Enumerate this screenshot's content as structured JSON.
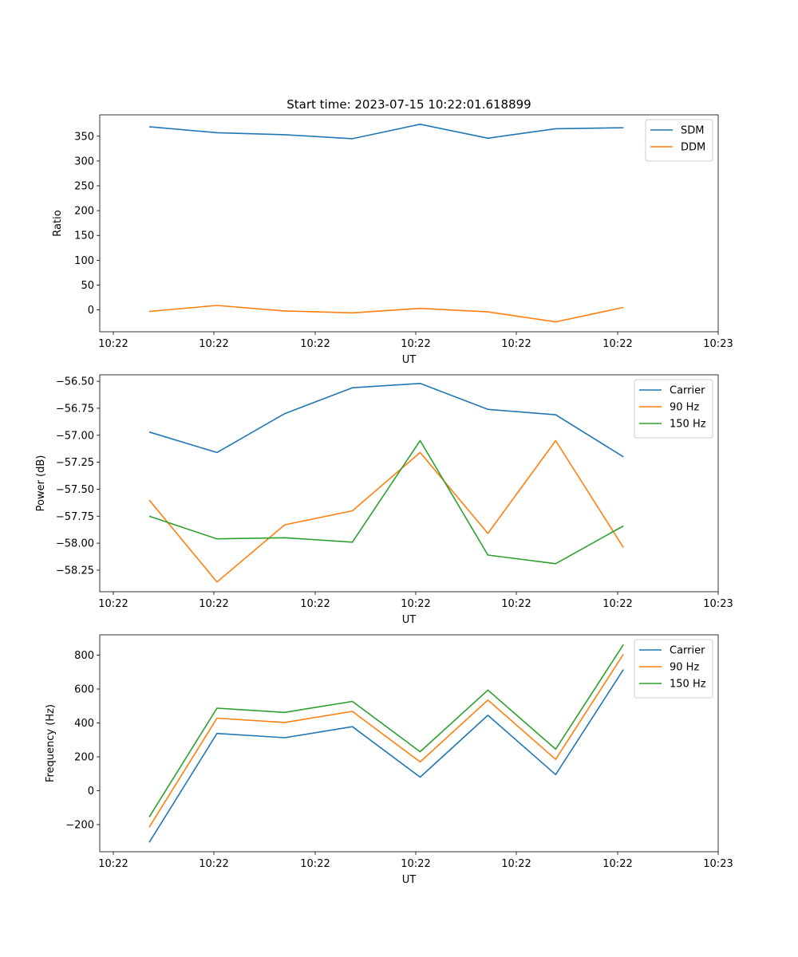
{
  "figure": {
    "title": "Start time: 2023-07-15 10:22:01.618899"
  },
  "chart_data": [
    {
      "type": "line",
      "title": "Start time: 2023-07-15 10:22:01.618899",
      "xlabel": "UT",
      "ylabel": "Ratio",
      "x_tick_labels": [
        "10:22",
        "10:22",
        "10:22",
        "10:22",
        "10:22",
        "10:22",
        "10:23"
      ],
      "x": [
        1,
        2,
        3,
        4,
        5,
        6,
        7,
        8
      ],
      "xlim": [
        0.27,
        9.4
      ],
      "ylim": [
        -44,
        393
      ],
      "y_ticks": [
        0,
        50,
        100,
        150,
        200,
        250,
        300,
        350
      ],
      "legend_position": "top-right",
      "series": [
        {
          "name": "SDM",
          "color": "#1f77b4",
          "values": [
            369,
            357,
            353,
            345,
            374,
            346,
            365,
            367
          ]
        },
        {
          "name": "DDM",
          "color": "#ff7f0e",
          "values": [
            -3,
            9,
            -2,
            -6,
            3,
            -4,
            -24,
            5
          ]
        }
      ]
    },
    {
      "type": "line",
      "xlabel": "UT",
      "ylabel": "Power (dB)",
      "x_tick_labels": [
        "10:22",
        "10:22",
        "10:22",
        "10:22",
        "10:22",
        "10:22",
        "10:23"
      ],
      "x": [
        1,
        2,
        3,
        4,
        5,
        6,
        7,
        8
      ],
      "xlim": [
        0.27,
        9.4
      ],
      "ylim": [
        -58.45,
        -56.44
      ],
      "y_ticks": [
        -58.25,
        -58.0,
        -57.75,
        -57.5,
        -57.25,
        -57.0,
        -56.75,
        -56.5
      ],
      "y_tick_labels": [
        "−58.25",
        "−58.00",
        "−57.75",
        "−57.50",
        "−57.25",
        "−57.00",
        "−56.75",
        "−56.50"
      ],
      "legend_position": "top-right",
      "series": [
        {
          "name": "Carrier",
          "color": "#1f77b4",
          "values": [
            -56.97,
            -57.16,
            -56.8,
            -56.56,
            -56.52,
            -56.76,
            -56.81,
            -57.2
          ]
        },
        {
          "name": "90 Hz",
          "color": "#ff7f0e",
          "values": [
            -57.6,
            -58.36,
            -57.83,
            -57.7,
            -57.16,
            -57.91,
            -57.05,
            -58.04
          ]
        },
        {
          "name": "150 Hz",
          "color": "#2ca02c",
          "values": [
            -57.75,
            -57.96,
            -57.95,
            -57.99,
            -57.05,
            -58.11,
            -58.19,
            -57.84
          ]
        }
      ]
    },
    {
      "type": "line",
      "xlabel": "UT",
      "ylabel": "Frequency (Hz)",
      "x_tick_labels": [
        "10:22",
        "10:22",
        "10:22",
        "10:22",
        "10:22",
        "10:22",
        "10:23"
      ],
      "x": [
        1,
        2,
        3,
        4,
        5,
        6,
        7,
        8
      ],
      "xlim": [
        0.27,
        9.4
      ],
      "ylim": [
        -360,
        920
      ],
      "y_ticks": [
        -200,
        0,
        200,
        400,
        600,
        800
      ],
      "y_tick_labels": [
        "−200",
        "0",
        "200",
        "400",
        "600",
        "800"
      ],
      "legend_position": "top-right",
      "series": [
        {
          "name": "Carrier",
          "color": "#1f77b4",
          "values": [
            -305,
            338,
            313,
            378,
            80,
            445,
            95,
            715
          ]
        },
        {
          "name": "90 Hz",
          "color": "#ff7f0e",
          "values": [
            -215,
            428,
            403,
            468,
            170,
            535,
            185,
            805
          ]
        },
        {
          "name": "150 Hz",
          "color": "#2ca02c",
          "values": [
            -155,
            487,
            462,
            527,
            230,
            594,
            245,
            862
          ]
        }
      ]
    }
  ]
}
